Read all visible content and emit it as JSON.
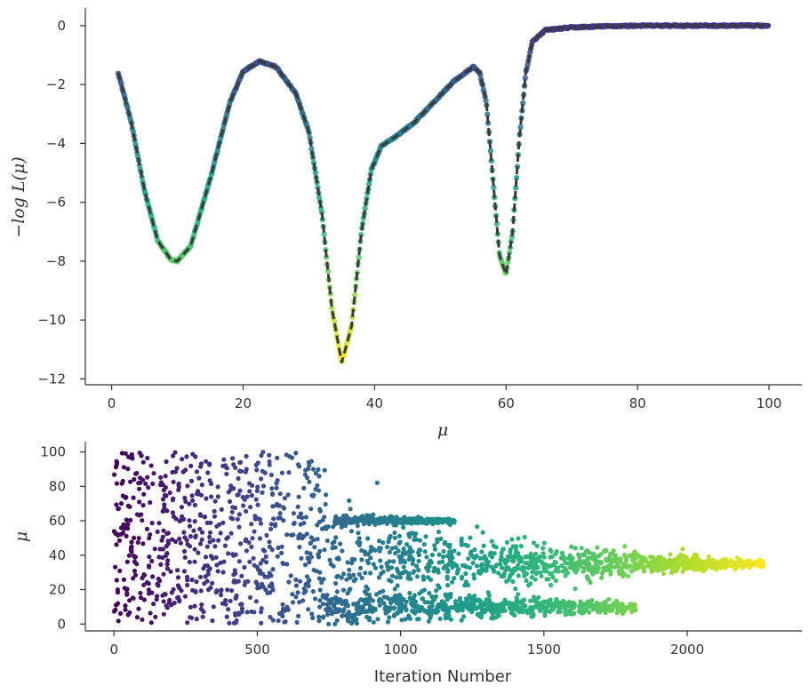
{
  "chart_data": [
    {
      "type": "line",
      "xlabel": "μ",
      "ylabel": "−log L(μ)",
      "xlim": [
        -4,
        105
      ],
      "ylim": [
        -12.2,
        0.6
      ],
      "xticks": [
        0,
        20,
        40,
        60,
        80,
        100
      ],
      "yticks": [
        0,
        -2,
        -4,
        -6,
        -8,
        -10,
        -12
      ],
      "xtick_labels": [
        "0",
        "20",
        "40",
        "60",
        "80",
        "100"
      ],
      "ytick_labels": [
        "0",
        "−2",
        "−4",
        "−6",
        "−8",
        "−10",
        "−12"
      ],
      "grid": false,
      "curve_style": "dashed dark line over colored sample points",
      "curve": {
        "x": [
          1,
          3,
          5,
          7,
          9,
          10,
          12,
          15,
          18,
          20,
          22.5,
          25,
          28,
          30,
          32,
          33.5,
          35,
          36.5,
          38,
          39.5,
          41,
          43,
          46,
          49,
          52,
          55,
          56,
          57,
          58,
          59,
          60,
          61,
          62,
          63,
          64,
          66,
          70,
          75,
          80,
          90,
          100
        ],
        "y": [
          -1.6,
          -3.3,
          -5.6,
          -7.3,
          -7.95,
          -8.0,
          -7.5,
          -5.2,
          -2.6,
          -1.55,
          -1.2,
          -1.4,
          -2.3,
          -3.6,
          -6.4,
          -9.6,
          -11.45,
          -10.2,
          -7.0,
          -4.9,
          -4.1,
          -3.8,
          -3.3,
          -2.6,
          -1.9,
          -1.4,
          -1.6,
          -2.6,
          -5.2,
          -7.8,
          -8.45,
          -7.0,
          -3.9,
          -1.6,
          -0.55,
          -0.15,
          -0.06,
          -0.02,
          0.0,
          0.0,
          0.0
        ]
      }
    },
    {
      "type": "scatter",
      "xlabel": "Iteration Number",
      "ylabel": "μ",
      "xlim": [
        -100,
        2400
      ],
      "ylim": [
        -4,
        106
      ],
      "xticks": [
        0,
        500,
        1000,
        1500,
        2000
      ],
      "yticks": [
        0,
        20,
        40,
        60,
        80,
        100
      ],
      "xtick_labels": [
        "0",
        "500",
        "1000",
        "1500",
        "2000"
      ],
      "ytick_labels": [
        "0",
        "20",
        "40",
        "60",
        "80",
        "100"
      ],
      "grid": false,
      "colormap": "viridis (by iteration)",
      "phases": [
        {
          "x_range": [
            0,
            740
          ],
          "y_range": [
            0,
            100
          ],
          "pattern": "uniform"
        },
        {
          "x_range": [
            770,
            1190
          ],
          "center": 60,
          "spread": 2
        },
        {
          "x_range": [
            740,
            1820
          ],
          "center": 10,
          "spread": 4
        },
        {
          "x_range": [
            740,
            2270
          ],
          "center": 35,
          "spread": 6
        }
      ]
    }
  ]
}
